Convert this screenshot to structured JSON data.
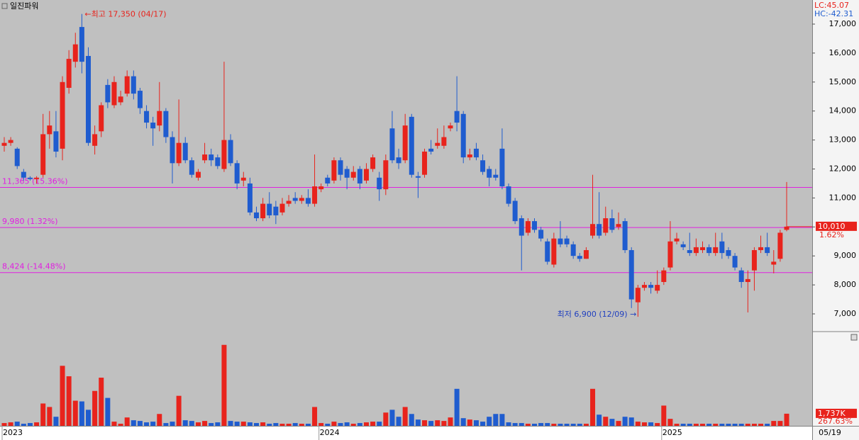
{
  "chart_data": [
    {
      "type": "candlestick",
      "title": "일진파워",
      "top_labels": [
        "LC:45.07",
        "HC:-42.31"
      ],
      "categories": [
        "2023",
        null,
        null,
        null,
        null,
        null,
        null,
        null,
        null,
        null,
        null,
        null,
        null,
        null,
        null,
        null,
        null,
        null,
        null,
        null,
        null,
        null,
        null,
        null,
        null,
        null,
        null,
        null,
        null,
        null,
        null,
        null,
        null,
        null,
        null,
        null,
        null,
        null,
        null,
        null,
        null,
        null,
        null,
        null,
        null,
        null,
        null,
        null,
        null,
        "2024",
        null,
        null,
        null,
        null,
        null,
        null,
        null,
        null,
        null,
        null,
        null,
        null,
        null,
        null,
        null,
        null,
        null,
        null,
        null,
        null,
        null,
        null,
        null,
        null,
        null,
        null,
        null,
        null,
        null,
        null,
        null,
        null,
        null,
        null,
        null,
        null,
        null,
        null,
        null,
        null,
        null,
        null,
        null,
        null,
        null,
        null,
        null,
        null,
        null,
        null,
        null,
        null,
        "2025",
        null,
        null,
        null,
        null,
        null,
        null,
        null,
        null,
        null,
        null,
        null,
        null,
        null,
        null,
        null,
        null,
        null,
        null,
        null
      ],
      "x_current_label": "05/19",
      "open": [
        12800,
        12900,
        12700,
        11900,
        11700,
        11650,
        11800,
        13200,
        13300,
        12700,
        14800,
        15700,
        16900,
        15900,
        12800,
        13300,
        14900,
        14200,
        14300,
        14600,
        15200,
        14700,
        14000,
        13600,
        13500,
        14000,
        13100,
        12200,
        12900,
        12300,
        11700,
        12300,
        12500,
        12400,
        12000,
        13000,
        12200,
        11600,
        11500,
        10500,
        10300,
        10800,
        10700,
        10500,
        10800,
        11000,
        10900,
        11000,
        10800,
        11300,
        11700,
        11600,
        12300,
        12000,
        11700,
        12000,
        11600,
        12000,
        11700,
        11300,
        13400,
        12400,
        12300,
        13800,
        11750,
        11800,
        12700,
        12800,
        12800,
        13400,
        14000,
        13900,
        12400,
        12700,
        12300,
        12000,
        11800,
        12700,
        11400,
        10900,
        10300,
        9800,
        10200,
        9900,
        9500,
        8700,
        9600,
        9600,
        9400,
        9000,
        8900,
        9700,
        10100,
        9800,
        10300,
        10000,
        10200,
        9200,
        7400,
        7900,
        8000,
        7800,
        8100,
        8600,
        9500,
        9400,
        9200,
        9100,
        9200,
        9300,
        9100,
        9500,
        9200,
        9000,
        8500,
        8100,
        8500,
        9200,
        9300,
        8700,
        8900,
        9900
      ],
      "high": [
        13100,
        13100,
        12750,
        12000,
        11750,
        11750,
        13900,
        14000,
        14000,
        15200,
        16100,
        16700,
        17350,
        16200,
        13500,
        14300,
        15100,
        15200,
        14700,
        15400,
        15400,
        14800,
        14200,
        13800,
        15000,
        14100,
        13300,
        14400,
        13100,
        12400,
        12000,
        12900,
        12700,
        12500,
        15700,
        13200,
        12300,
        11900,
        11700,
        10700,
        11000,
        11200,
        10900,
        11000,
        11100,
        11200,
        11100,
        11300,
        12500,
        11500,
        11800,
        12400,
        12400,
        12100,
        12100,
        12100,
        12200,
        12500,
        11900,
        12500,
        14000,
        12700,
        13900,
        13900,
        11900,
        12700,
        13000,
        13400,
        13500,
        13600,
        15200,
        14000,
        12700,
        12900,
        12500,
        12100,
        12000,
        13400,
        11500,
        11000,
        10400,
        10300,
        10300,
        10000,
        9600,
        9800,
        10200,
        9700,
        9500,
        9100,
        9300,
        11800,
        11200,
        10700,
        10600,
        10500,
        10300,
        9300,
        8000,
        8100,
        8100,
        8500,
        8600,
        10200,
        9800,
        9500,
        9800,
        9600,
        9500,
        9400,
        9800,
        9800,
        9300,
        9100,
        8600,
        8500,
        9300,
        9700,
        9800,
        9200,
        9900,
        11550
      ],
      "low": [
        12600,
        12800,
        12000,
        11600,
        11600,
        11500,
        11700,
        12700,
        12400,
        12300,
        14600,
        15500,
        15300,
        12800,
        12500,
        13100,
        14100,
        14100,
        14200,
        14500,
        14400,
        13900,
        13400,
        12800,
        13300,
        12900,
        11500,
        12100,
        12200,
        11700,
        11600,
        12200,
        12100,
        12000,
        11900,
        12100,
        11300,
        11400,
        10400,
        10200,
        10200,
        10300,
        10100,
        10400,
        10700,
        10800,
        10800,
        10700,
        10700,
        11200,
        11400,
        11500,
        11600,
        11300,
        11600,
        11300,
        11500,
        11900,
        10900,
        11100,
        12200,
        12000,
        12200,
        11700,
        11000,
        11700,
        12500,
        12700,
        12700,
        13300,
        13300,
        12200,
        12300,
        12300,
        11800,
        11400,
        11600,
        11300,
        10700,
        10100,
        8500,
        9700,
        9800,
        9500,
        8700,
        8600,
        9300,
        9300,
        8900,
        8800,
        8900,
        9600,
        9600,
        9700,
        9800,
        9900,
        9100,
        7200,
        6900,
        7800,
        7700,
        7700,
        8000,
        8500,
        9400,
        9200,
        9000,
        9000,
        9100,
        9000,
        9000,
        8900,
        8900,
        8500,
        7900,
        7050,
        7800,
        9100,
        9000,
        8400,
        8800,
        9850
      ],
      "close": [
        12900,
        13000,
        12100,
        11700,
        11650,
        11700,
        13200,
        13500,
        12600,
        15000,
        15800,
        16300,
        15700,
        12900,
        13200,
        14200,
        14300,
        15000,
        14500,
        15200,
        14600,
        14100,
        13600,
        13400,
        14000,
        13100,
        12200,
        12900,
        12300,
        11800,
        11900,
        12500,
        12300,
        12100,
        13000,
        12200,
        11500,
        11700,
        10500,
        10300,
        10800,
        10400,
        10400,
        10800,
        10900,
        10900,
        11000,
        10800,
        11400,
        11400,
        11500,
        12300,
        11800,
        11700,
        11900,
        11500,
        12000,
        12400,
        11300,
        12300,
        12300,
        12200,
        13500,
        11800,
        11700,
        12600,
        12600,
        12900,
        13100,
        13500,
        13600,
        12400,
        12500,
        12400,
        11900,
        11700,
        11700,
        11400,
        10800,
        10200,
        9700,
        10200,
        9900,
        9600,
        8800,
        9600,
        9400,
        9400,
        9000,
        8900,
        9200,
        10100,
        9700,
        10300,
        9900,
        10100,
        9200,
        7500,
        7900,
        8000,
        7900,
        8000,
        8500,
        9500,
        9600,
        9300,
        9100,
        9300,
        9300,
        9100,
        9300,
        9100,
        9000,
        8600,
        8100,
        8200,
        9200,
        9300,
        9100,
        8800,
        9800,
        10010
      ],
      "up_color": "#e8231c",
      "down_color": "#1f5ccf",
      "ylim": [
        6413,
        17831
      ],
      "yticks": [
        {
          "value": 7000,
          "label": "7,000"
        },
        {
          "value": 8000,
          "label": "8,000"
        },
        {
          "value": 9000,
          "label": "9,000"
        },
        {
          "value": 10000,
          "label": "10,000"
        },
        {
          "value": 11000,
          "label": "11,000"
        },
        {
          "value": 12000,
          "label": "12,000"
        },
        {
          "value": 13000,
          "label": "13,000"
        },
        {
          "value": 14000,
          "label": "14,000"
        },
        {
          "value": 15000,
          "label": "15,000"
        },
        {
          "value": 16000,
          "label": "16,000"
        },
        {
          "value": 17000,
          "label": "17,000"
        }
      ],
      "hlines": [
        {
          "value": 11365,
          "label": "11,365 (15.36%)"
        },
        {
          "value": 9980,
          "label": "9,980 (1.32%)"
        },
        {
          "value": 8424,
          "label": "8,424 (-14.48%)"
        }
      ],
      "hline_color": "#e020e0",
      "max_annotation": "←최고 17,350 (04/17)",
      "min_annotation": "최저 6,900 (12/09) →",
      "current_label": "10,010",
      "change_label": "1.62%"
    },
    {
      "type": "bar",
      "values": [
        400,
        500,
        600,
        300,
        400,
        500,
        3200,
        2700,
        1300,
        8600,
        7100,
        3600,
        3500,
        2300,
        5000,
        6900,
        4000,
        600,
        300,
        1200,
        800,
        700,
        500,
        600,
        1700,
        400,
        600,
        4300,
        800,
        700,
        500,
        700,
        400,
        500,
        11600,
        700,
        600,
        600,
        500,
        400,
        500,
        300,
        400,
        300,
        300,
        400,
        300,
        300,
        2700,
        400,
        300,
        600,
        400,
        500,
        300,
        400,
        500,
        600,
        600,
        1900,
        2300,
        1300,
        2700,
        1700,
        900,
        800,
        700,
        800,
        700,
        1200,
        5300,
        1100,
        900,
        800,
        600,
        1300,
        1700,
        1700,
        500,
        400,
        400,
        300,
        300,
        400,
        400,
        300,
        300,
        300,
        300,
        300,
        300,
        5300,
        1600,
        1300,
        1000,
        700,
        1300,
        1200,
        600,
        500,
        500,
        400,
        2900,
        1000,
        300,
        300,
        300,
        300,
        300,
        300,
        300,
        300,
        300,
        300,
        300,
        300,
        300,
        300,
        300,
        700,
        700,
        1737
      ],
      "ylim": [
        0,
        13400
      ],
      "current_label": "1,737K",
      "change_label": "267.63%"
    }
  ]
}
